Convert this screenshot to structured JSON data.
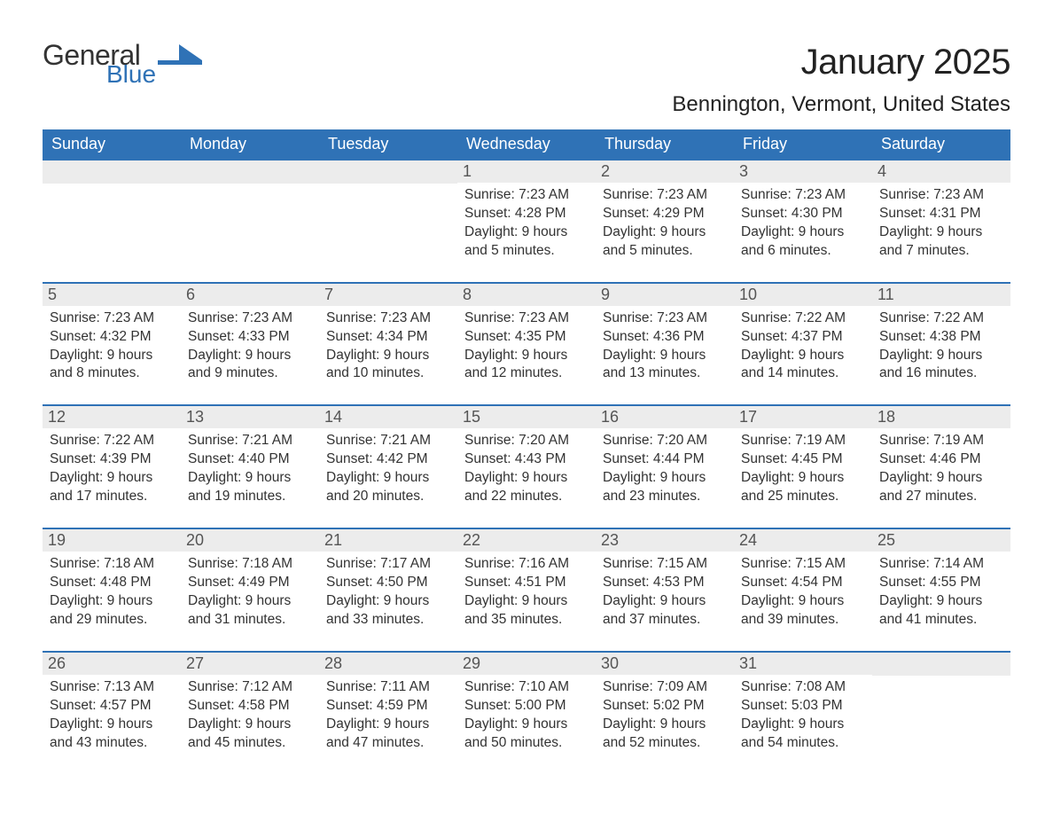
{
  "logo": {
    "text_dark": "General",
    "text_blue": "Blue",
    "shape_color": "#2f72b6"
  },
  "title": "January 2025",
  "subtitle": "Bennington, Vermont, United States",
  "colors": {
    "header_bg": "#2f72b6",
    "header_text": "#ffffff",
    "daynum_bg": "#ececec",
    "row_border": "#2f72b6",
    "body_text": "#333333",
    "page_bg": "#ffffff"
  },
  "typography": {
    "title_fontsize": 40,
    "subtitle_fontsize": 24,
    "dow_fontsize": 18,
    "daynum_fontsize": 18,
    "body_fontsize": 15.5
  },
  "days_of_week": [
    "Sunday",
    "Monday",
    "Tuesday",
    "Wednesday",
    "Thursday",
    "Friday",
    "Saturday"
  ],
  "weeks": [
    [
      null,
      null,
      null,
      {
        "n": "1",
        "sunrise": "Sunrise: 7:23 AM",
        "sunset": "Sunset: 4:28 PM",
        "daylight": "Daylight: 9 hours and 5 minutes."
      },
      {
        "n": "2",
        "sunrise": "Sunrise: 7:23 AM",
        "sunset": "Sunset: 4:29 PM",
        "daylight": "Daylight: 9 hours and 5 minutes."
      },
      {
        "n": "3",
        "sunrise": "Sunrise: 7:23 AM",
        "sunset": "Sunset: 4:30 PM",
        "daylight": "Daylight: 9 hours and 6 minutes."
      },
      {
        "n": "4",
        "sunrise": "Sunrise: 7:23 AM",
        "sunset": "Sunset: 4:31 PM",
        "daylight": "Daylight: 9 hours and 7 minutes."
      }
    ],
    [
      {
        "n": "5",
        "sunrise": "Sunrise: 7:23 AM",
        "sunset": "Sunset: 4:32 PM",
        "daylight": "Daylight: 9 hours and 8 minutes."
      },
      {
        "n": "6",
        "sunrise": "Sunrise: 7:23 AM",
        "sunset": "Sunset: 4:33 PM",
        "daylight": "Daylight: 9 hours and 9 minutes."
      },
      {
        "n": "7",
        "sunrise": "Sunrise: 7:23 AM",
        "sunset": "Sunset: 4:34 PM",
        "daylight": "Daylight: 9 hours and 10 minutes."
      },
      {
        "n": "8",
        "sunrise": "Sunrise: 7:23 AM",
        "sunset": "Sunset: 4:35 PM",
        "daylight": "Daylight: 9 hours and 12 minutes."
      },
      {
        "n": "9",
        "sunrise": "Sunrise: 7:23 AM",
        "sunset": "Sunset: 4:36 PM",
        "daylight": "Daylight: 9 hours and 13 minutes."
      },
      {
        "n": "10",
        "sunrise": "Sunrise: 7:22 AM",
        "sunset": "Sunset: 4:37 PM",
        "daylight": "Daylight: 9 hours and 14 minutes."
      },
      {
        "n": "11",
        "sunrise": "Sunrise: 7:22 AM",
        "sunset": "Sunset: 4:38 PM",
        "daylight": "Daylight: 9 hours and 16 minutes."
      }
    ],
    [
      {
        "n": "12",
        "sunrise": "Sunrise: 7:22 AM",
        "sunset": "Sunset: 4:39 PM",
        "daylight": "Daylight: 9 hours and 17 minutes."
      },
      {
        "n": "13",
        "sunrise": "Sunrise: 7:21 AM",
        "sunset": "Sunset: 4:40 PM",
        "daylight": "Daylight: 9 hours and 19 minutes."
      },
      {
        "n": "14",
        "sunrise": "Sunrise: 7:21 AM",
        "sunset": "Sunset: 4:42 PM",
        "daylight": "Daylight: 9 hours and 20 minutes."
      },
      {
        "n": "15",
        "sunrise": "Sunrise: 7:20 AM",
        "sunset": "Sunset: 4:43 PM",
        "daylight": "Daylight: 9 hours and 22 minutes."
      },
      {
        "n": "16",
        "sunrise": "Sunrise: 7:20 AM",
        "sunset": "Sunset: 4:44 PM",
        "daylight": "Daylight: 9 hours and 23 minutes."
      },
      {
        "n": "17",
        "sunrise": "Sunrise: 7:19 AM",
        "sunset": "Sunset: 4:45 PM",
        "daylight": "Daylight: 9 hours and 25 minutes."
      },
      {
        "n": "18",
        "sunrise": "Sunrise: 7:19 AM",
        "sunset": "Sunset: 4:46 PM",
        "daylight": "Daylight: 9 hours and 27 minutes."
      }
    ],
    [
      {
        "n": "19",
        "sunrise": "Sunrise: 7:18 AM",
        "sunset": "Sunset: 4:48 PM",
        "daylight": "Daylight: 9 hours and 29 minutes."
      },
      {
        "n": "20",
        "sunrise": "Sunrise: 7:18 AM",
        "sunset": "Sunset: 4:49 PM",
        "daylight": "Daylight: 9 hours and 31 minutes."
      },
      {
        "n": "21",
        "sunrise": "Sunrise: 7:17 AM",
        "sunset": "Sunset: 4:50 PM",
        "daylight": "Daylight: 9 hours and 33 minutes."
      },
      {
        "n": "22",
        "sunrise": "Sunrise: 7:16 AM",
        "sunset": "Sunset: 4:51 PM",
        "daylight": "Daylight: 9 hours and 35 minutes."
      },
      {
        "n": "23",
        "sunrise": "Sunrise: 7:15 AM",
        "sunset": "Sunset: 4:53 PM",
        "daylight": "Daylight: 9 hours and 37 minutes."
      },
      {
        "n": "24",
        "sunrise": "Sunrise: 7:15 AM",
        "sunset": "Sunset: 4:54 PM",
        "daylight": "Daylight: 9 hours and 39 minutes."
      },
      {
        "n": "25",
        "sunrise": "Sunrise: 7:14 AM",
        "sunset": "Sunset: 4:55 PM",
        "daylight": "Daylight: 9 hours and 41 minutes."
      }
    ],
    [
      {
        "n": "26",
        "sunrise": "Sunrise: 7:13 AM",
        "sunset": "Sunset: 4:57 PM",
        "daylight": "Daylight: 9 hours and 43 minutes."
      },
      {
        "n": "27",
        "sunrise": "Sunrise: 7:12 AM",
        "sunset": "Sunset: 4:58 PM",
        "daylight": "Daylight: 9 hours and 45 minutes."
      },
      {
        "n": "28",
        "sunrise": "Sunrise: 7:11 AM",
        "sunset": "Sunset: 4:59 PM",
        "daylight": "Daylight: 9 hours and 47 minutes."
      },
      {
        "n": "29",
        "sunrise": "Sunrise: 7:10 AM",
        "sunset": "Sunset: 5:00 PM",
        "daylight": "Daylight: 9 hours and 50 minutes."
      },
      {
        "n": "30",
        "sunrise": "Sunrise: 7:09 AM",
        "sunset": "Sunset: 5:02 PM",
        "daylight": "Daylight: 9 hours and 52 minutes."
      },
      {
        "n": "31",
        "sunrise": "Sunrise: 7:08 AM",
        "sunset": "Sunset: 5:03 PM",
        "daylight": "Daylight: 9 hours and 54 minutes."
      },
      null
    ]
  ]
}
